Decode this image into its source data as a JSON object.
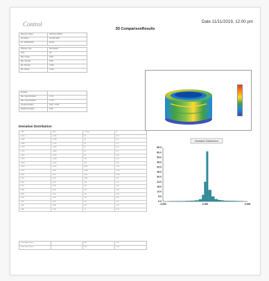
{
  "header": {
    "logo_small": "",
    "logo_text": "Control",
    "date": "Date 11/11/2019, 12:00 pm",
    "title": "3D ComparisonResults"
  },
  "info_table_1": [
    {
      "k": "Reference Object",
      "v": "CAD Part 12345-A"
    },
    {
      "k": "Test Object",
      "v": "Test Part 0001"
    },
    {
      "k": "No. of Data Points",
      "v": "25,212"
    }
  ],
  "info_table_2": [
    {
      "k": "Tolerance Type",
      "v": "3D Deviation"
    },
    {
      "k": "Units",
      "v": "mm"
    },
    {
      "k": "Max. Critical",
      "v": "0.300"
    },
    {
      "k": "Max. Nominal",
      "v": "0.050"
    },
    {
      "k": "Min. Nominal",
      "v": "-0.050"
    },
    {
      "k": "Min. Critical",
      "v": "-0.300"
    }
  ],
  "info_table_3": [
    {
      "k": "Deviation",
      "v": ""
    },
    {
      "k": "Max. Upper Deviation",
      "v": "1.744"
    },
    {
      "k": "Max. Lower Deviation",
      "v": "-1.744"
    },
    {
      "k": "Average Deviation",
      "v": "0.011 / -0.016"
    },
    {
      "k": "Standard Deviation",
      "v": "0.115"
    }
  ],
  "deviation": {
    "section_title": "Deviation Distribution",
    "headers": [
      "> Min",
      "<Max",
      "# Points",
      "%"
    ],
    "rows": [
      [
        "-1.744",
        "-1.566",
        "31",
        "0.12"
      ],
      [
        "-1.566",
        "-1.388",
        "38",
        "0.15"
      ],
      [
        "-1.388",
        "-1.210",
        "44",
        "0.17"
      ],
      [
        "-1.210",
        "-1.032",
        "57",
        "0.23"
      ],
      [
        "-1.032",
        "-0.854",
        "69",
        "0.27"
      ],
      [
        "-0.854",
        "-0.676",
        "82",
        "0.33"
      ],
      [
        "-0.676",
        "-0.498",
        "118",
        "0.47"
      ],
      [
        "-0.498",
        "-0.320",
        "196",
        "0.78"
      ],
      [
        "-0.320",
        "-0.142",
        "2003",
        "7.94"
      ],
      [
        "-0.142",
        "0.036",
        "15402",
        "61.09"
      ],
      [
        "0.036",
        "0.214",
        "3520",
        "13.96"
      ],
      [
        "0.214",
        "0.392",
        "1489",
        "5.91"
      ],
      [
        "0.392",
        "0.570",
        "702",
        "2.78"
      ],
      [
        "0.570",
        "0.748",
        "415",
        "1.65"
      ],
      [
        "0.748",
        "0.926",
        "297",
        "1.18"
      ],
      [
        "0.926",
        "1.104",
        "210",
        "0.83"
      ],
      [
        "1.104",
        "1.282",
        "174",
        "0.69"
      ],
      [
        "1.282",
        "1.460",
        "150",
        "0.59"
      ],
      [
        "1.460",
        "1.638",
        "124",
        "0.49"
      ],
      [
        "1.638",
        "1.744",
        "91",
        "0.36"
      ]
    ]
  },
  "bottom_table": [
    [
      "Out of Upper Critical",
      "",
      "381",
      "1.51"
    ],
    [
      "Out of Lower Critical",
      "",
      "311",
      "1.23"
    ]
  ],
  "colors": {
    "bar": "#2e8b9a",
    "bar_edge": "#1e6a78"
  },
  "chart_data": {
    "type": "bar",
    "title": "Deviation Distribution",
    "x": [
      -1.7,
      -1.5,
      -1.3,
      -1.1,
      -0.9,
      -0.7,
      -0.5,
      -0.3,
      -0.15,
      -0.05,
      0.05,
      0.15,
      0.3,
      0.45,
      0.6,
      0.75,
      0.9,
      1.05,
      1.2,
      1.35,
      1.5,
      1.65
    ],
    "values": [
      0.2,
      0.3,
      0.4,
      0.4,
      0.6,
      0.8,
      1.2,
      2.6,
      8.0,
      24.0,
      61.1,
      14.0,
      6.0,
      2.8,
      1.7,
      1.2,
      0.8,
      0.7,
      0.6,
      0.5,
      0.4,
      0.3
    ],
    "xlim": [
      -2.0,
      2.0
    ],
    "ylim": [
      0,
      66
    ],
    "yticks": [
      "66.0",
      "60.0",
      "54.0",
      "48.0",
      "42.0",
      "36.0",
      "30.0",
      "24.0",
      "18.0",
      "12.0",
      "6.0",
      "0.0"
    ],
    "xticks": [
      "-2.000",
      "0.000",
      "2.000"
    ],
    "grid": false
  }
}
